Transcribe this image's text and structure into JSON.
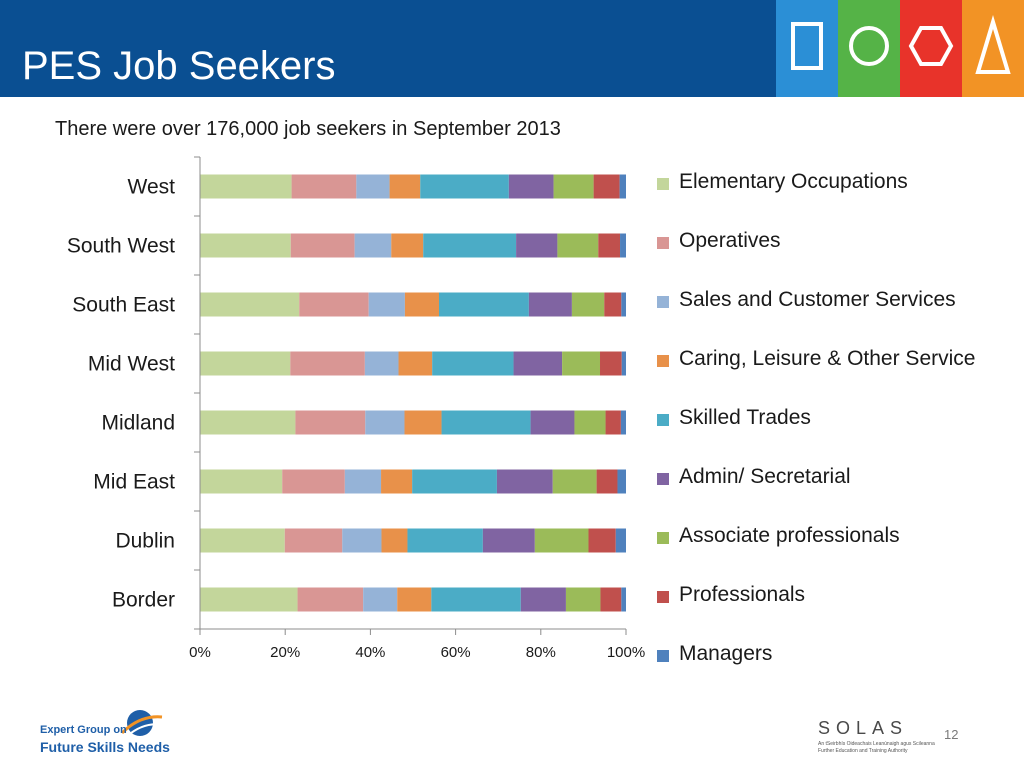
{
  "slide": {
    "title": "PES Job Seekers",
    "subtitle": "There were over 176,000 job seekers  in September 2013",
    "page_number": "12"
  },
  "colors": {
    "header_bg": "#0a4f92",
    "tiles": [
      "#2b8fd6",
      "#55b347",
      "#e8332a",
      "#f29325"
    ]
  },
  "header_icons": [
    "rectangle-icon",
    "circle-icon",
    "hexagon-icon",
    "triangle-icon"
  ],
  "footer": {
    "line1": "Expert Group on",
    "line2": "Future Skills Needs",
    "solas_word": "SOLAS",
    "solas_tag1": "An tSeirbhís Oideachais Leanúnaigh agus Scileanna",
    "solas_tag2": "Further Education and Training Authority"
  },
  "chart_data": {
    "type": "bar",
    "orientation": "horizontal",
    "stacked": "percent",
    "title": "",
    "xlabel": "",
    "ylabel": "",
    "xlim": [
      0,
      100
    ],
    "x_ticks": [
      "0%",
      "20%",
      "40%",
      "60%",
      "80%",
      "100%"
    ],
    "grid": false,
    "legend_position": "right",
    "categories": [
      "West",
      "South West",
      "South East",
      "Mid West",
      "Midland",
      "Mid East",
      "Dublin",
      "Border"
    ],
    "series": [
      {
        "name": "Elementary Occupations",
        "color": "#c3d69b",
        "values": [
          21.5,
          21.3,
          23.3,
          21.2,
          22.4,
          19.3,
          19.9,
          22.9
        ]
      },
      {
        "name": "Operatives",
        "color": "#d99694",
        "values": [
          15.2,
          15.0,
          16.3,
          17.5,
          16.4,
          14.7,
          13.5,
          15.4
        ]
      },
      {
        "name": "Sales and Customer Services",
        "color": "#95b3d7",
        "values": [
          7.8,
          8.6,
          8.5,
          7.9,
          9.2,
          8.5,
          9.2,
          8.0
        ]
      },
      {
        "name": "Caring, Leisure & Other Service",
        "color": "#e8914a",
        "values": [
          7.2,
          7.5,
          8.0,
          7.9,
          8.7,
          7.3,
          6.1,
          8.0
        ]
      },
      {
        "name": "Skilled Trades",
        "color": "#4bacc6",
        "values": [
          20.8,
          21.8,
          21.1,
          19.1,
          20.9,
          19.9,
          17.7,
          21.0
        ]
      },
      {
        "name": "Admin/ Secretarial",
        "color": "#8064a2",
        "values": [
          10.5,
          9.7,
          10.1,
          11.4,
          10.3,
          13.1,
          12.2,
          10.6
        ]
      },
      {
        "name": "Associate professionals",
        "color": "#9bbb59",
        "values": [
          9.4,
          9.6,
          7.6,
          8.9,
          7.3,
          10.3,
          12.6,
          8.1
        ]
      },
      {
        "name": "Professionals",
        "color": "#c0504d",
        "values": [
          6.1,
          5.1,
          4.0,
          5.1,
          3.6,
          4.9,
          6.4,
          4.9
        ]
      },
      {
        "name": "Managers",
        "color": "#4f81bd",
        "values": [
          1.5,
          1.4,
          1.1,
          1.0,
          1.2,
          2.0,
          2.4,
          1.1
        ]
      }
    ]
  }
}
